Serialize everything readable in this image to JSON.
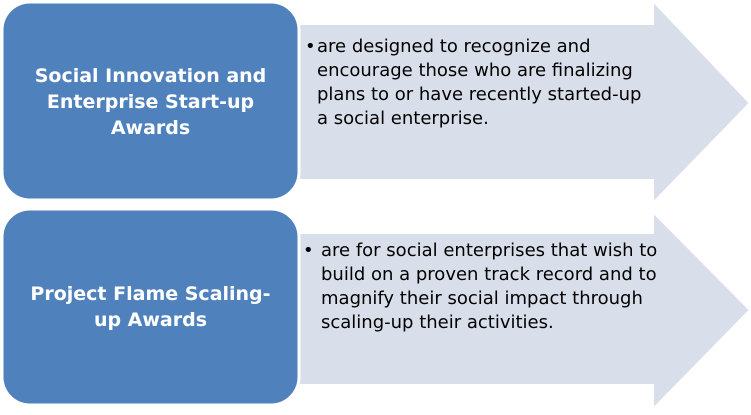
{
  "colors": {
    "box_fill": "#4f81bd",
    "box_stroke": "#ffffff",
    "arrow_fill": "#d9dfea",
    "arrow_stroke": "#ffffff",
    "label_text": "#ffffff",
    "body_text": "#000000"
  },
  "rows": [
    {
      "label": "Social Innovation and Enterprise Start-up Awards",
      "bullet": "•",
      "description": "are designed to recognize and encourage those who are finalizing plans to or have recently started-up a social enterprise."
    },
    {
      "label": "Project Flame Scaling-up Awards",
      "bullet": "•",
      "description": "are for social enterprises that wish to build on a proven track record and to magnify their social impact through scaling-up their activities."
    }
  ]
}
